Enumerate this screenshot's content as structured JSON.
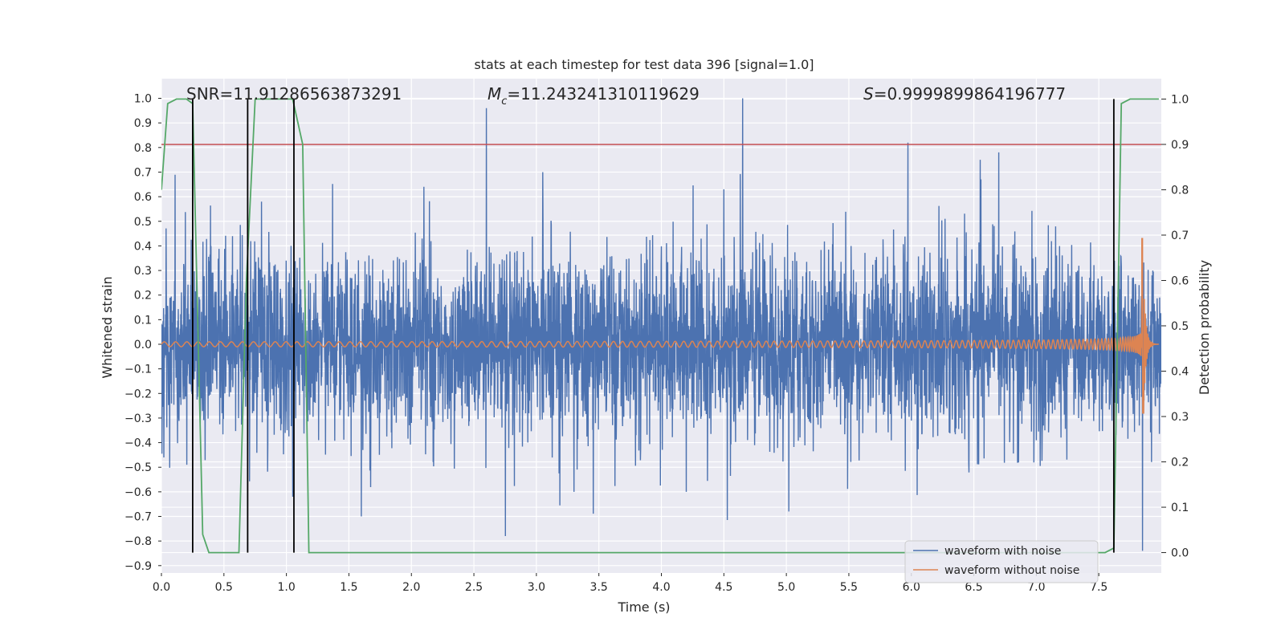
{
  "chart_data": {
    "type": "line",
    "title": "stats at each timestep for test data 396 [signal=1.0]",
    "xlabel": "Time (s)",
    "ylabel": "Whitened strain",
    "ylabel_right": "Detection probability",
    "xlim": [
      0.0,
      8.0
    ],
    "ylim": [
      -0.93,
      1.08
    ],
    "ylim_right": [
      -0.045,
      1.045
    ],
    "xticks": [
      0.0,
      0.5,
      1.0,
      1.5,
      2.0,
      2.5,
      3.0,
      3.5,
      4.0,
      4.5,
      5.0,
      5.5,
      6.0,
      6.5,
      7.0,
      7.5
    ],
    "xtick_labels": [
      "0.0",
      "0.5",
      "1.0",
      "1.5",
      "2.0",
      "2.5",
      "3.0",
      "3.5",
      "4.0",
      "4.5",
      "5.0",
      "5.5",
      "6.0",
      "6.5",
      "7.0",
      "7.5"
    ],
    "yticks": [
      -0.9,
      -0.8,
      -0.7,
      -0.6,
      -0.5,
      -0.4,
      -0.3,
      -0.2,
      -0.1,
      0.0,
      0.1,
      0.2,
      0.3,
      0.4,
      0.5,
      0.6,
      0.7,
      0.8,
      0.9,
      1.0
    ],
    "ytick_labels": [
      "−0.9",
      "−0.8",
      "−0.7",
      "−0.6",
      "−0.5",
      "−0.4",
      "−0.3",
      "−0.2",
      "−0.1",
      "0.0",
      "0.1",
      "0.2",
      "0.3",
      "0.4",
      "0.5",
      "0.6",
      "0.7",
      "0.8",
      "0.9",
      "1.0"
    ],
    "yticks_right": [
      0.0,
      0.1,
      0.2,
      0.3,
      0.4,
      0.5,
      0.6,
      0.7,
      0.8,
      0.9,
      1.0
    ],
    "ytick_labels_right": [
      "0.0",
      "0.1",
      "0.2",
      "0.3",
      "0.4",
      "0.5",
      "0.6",
      "0.7",
      "0.8",
      "0.9",
      "1.0"
    ],
    "grid": true,
    "annotations": {
      "snr": "SNR=11.91286563873291",
      "mc_symbol": "M",
      "mc_sub": "c",
      "mc_value": "=11.243241310119629",
      "s_symbol": "S",
      "s_value": "=0.9999899864196777"
    },
    "threshold": {
      "value": 0.9,
      "axis": "right",
      "color": "#c44e52"
    },
    "vertical_markers": [
      0.25,
      0.69,
      1.06,
      7.62
    ],
    "series": [
      {
        "name": "waveform with noise",
        "color": "#4c72b0",
        "kind": "noise",
        "duration": 8.0,
        "sample_rate": 512,
        "typical_amplitude": 0.3,
        "peaks": [
          [
            2.6,
            0.96
          ],
          [
            4.65,
            1.0
          ],
          [
            6.7,
            0.78
          ],
          [
            0.8,
            0.58
          ],
          [
            2.1,
            0.64
          ],
          [
            3.05,
            0.7
          ],
          [
            4.5,
            0.63
          ],
          [
            6.55,
            0.75
          ],
          [
            1.05,
            -0.62
          ],
          [
            1.6,
            -0.7
          ],
          [
            5.02,
            -0.68
          ],
          [
            7.85,
            -0.84
          ],
          [
            3.3,
            -0.6
          ],
          [
            4.2,
            -0.6
          ]
        ]
      },
      {
        "name": "waveform without noise",
        "color": "#dd8452",
        "kind": "chirp",
        "start_amplitude": 0.01,
        "peak_time": 7.85,
        "peak_amplitude": 0.43,
        "trough_amplitude": -0.28,
        "end_time": 7.98
      },
      {
        "name": "detection probability",
        "color": "#55a868",
        "axis": "right",
        "x": [
          0.0,
          0.05,
          0.12,
          0.2,
          0.25,
          0.33,
          0.38,
          0.62,
          0.68,
          0.75,
          1.05,
          1.13,
          1.18,
          1.25,
          7.55,
          7.62,
          7.68,
          7.75,
          7.98
        ],
        "values": [
          0.8,
          0.99,
          1.0,
          1.0,
          0.99,
          0.04,
          0.0,
          0.0,
          0.6,
          1.0,
          1.0,
          0.9,
          0.0,
          0.0,
          0.0,
          0.01,
          0.99,
          1.0,
          1.0
        ]
      }
    ],
    "legend": {
      "location": "lower-right",
      "entries": [
        "waveform with noise",
        "waveform without noise"
      ],
      "colors": [
        "#4c72b0",
        "#dd8452"
      ]
    }
  }
}
